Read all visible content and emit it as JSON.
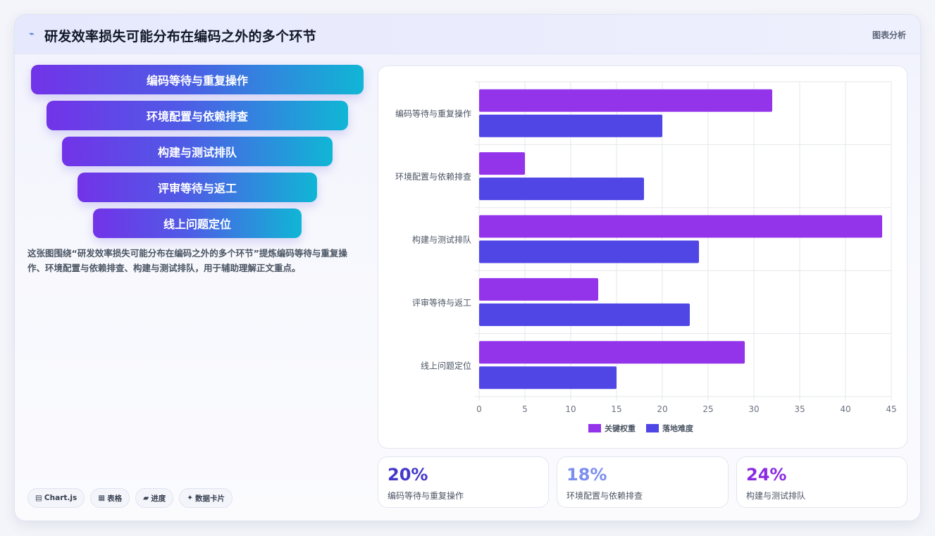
{
  "header": {
    "icon": "trend-icon",
    "title": "研发效率损失可能分布在编码之外的多个环节",
    "tag": "图表分析"
  },
  "funnel": [
    "编码等待与重复操作",
    "环境配置与依赖排查",
    "构建与测试排队",
    "评审等待与返工",
    "线上问题定位"
  ],
  "description": "这张图围绕“研发效率损失可能分布在编码之外的多个环节”提炼编码等待与重复操作、环境配置与依赖排查、构建与测试排队，用于辅助理解正文重点。",
  "chips": [
    {
      "icon": "▤",
      "label": "Chart.js"
    },
    {
      "icon": "▦",
      "label": "表格"
    },
    {
      "icon": "▰",
      "label": "进度"
    },
    {
      "icon": "✦",
      "label": "数据卡片"
    }
  ],
  "stats": [
    {
      "value": "20%",
      "label": "编码等待与重复操作",
      "color": "#4338ca"
    },
    {
      "value": "18%",
      "label": "环境配置与依赖排查",
      "color": "#7c8ef0"
    },
    {
      "value": "24%",
      "label": "构建与测试排队",
      "color": "#8a2be2"
    }
  ],
  "chart_data": {
    "type": "bar",
    "orientation": "horizontal",
    "categories": [
      "编码等待与重复操作",
      "环境配置与依赖排查",
      "构建与测试排队",
      "评审等待与返工",
      "线上问题定位"
    ],
    "series": [
      {
        "name": "关键权重",
        "values": [
          32,
          5,
          44,
          13,
          29
        ],
        "color": "#9333ea"
      },
      {
        "name": "落地难度",
        "values": [
          20,
          18,
          24,
          23,
          15
        ],
        "color": "#4f46e5"
      }
    ],
    "xlim": [
      0,
      45
    ],
    "xticks": [
      0,
      5,
      10,
      15,
      20,
      25,
      30,
      35,
      40,
      45
    ],
    "grid": true,
    "legend_position": "bottom"
  }
}
